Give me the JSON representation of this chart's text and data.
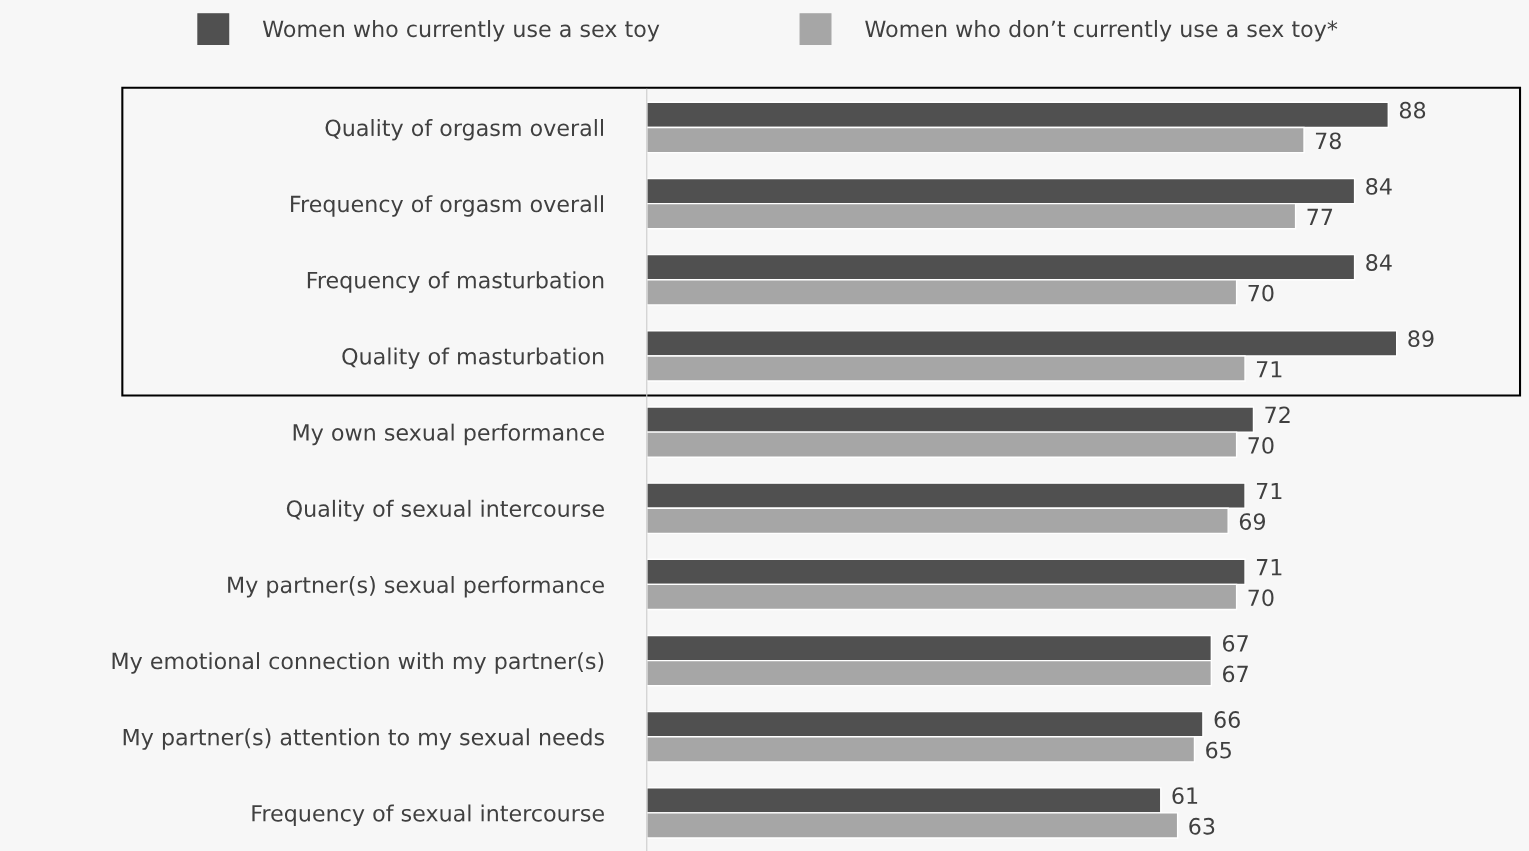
{
  "chart_data": {
    "type": "bar",
    "orientation": "horizontal",
    "categories": [
      "Quality of orgasm overall",
      "Frequency of orgasm overall",
      "Frequency of masturbation",
      "Quality of masturbation",
      "My own sexual performance",
      "Quality of sexual intercourse",
      "My partner(s) sexual performance",
      "My emotional connection with my partner(s)",
      "My partner(s) attention to my sexual needs",
      "Frequency of sexual intercourse"
    ],
    "series": [
      {
        "name": "Women who currently use a sex toy",
        "color": "#505050",
        "values": [
          88,
          84,
          84,
          89,
          72,
          71,
          71,
          67,
          66,
          61
        ]
      },
      {
        "name": "Women who don’t currently use a sex toy*",
        "color": "#a6a6a6",
        "values": [
          78,
          77,
          70,
          71,
          70,
          69,
          70,
          67,
          65,
          63
        ]
      }
    ],
    "data_labels": true,
    "legend": "top",
    "grid": false,
    "tick_labels": "y"
  }
}
